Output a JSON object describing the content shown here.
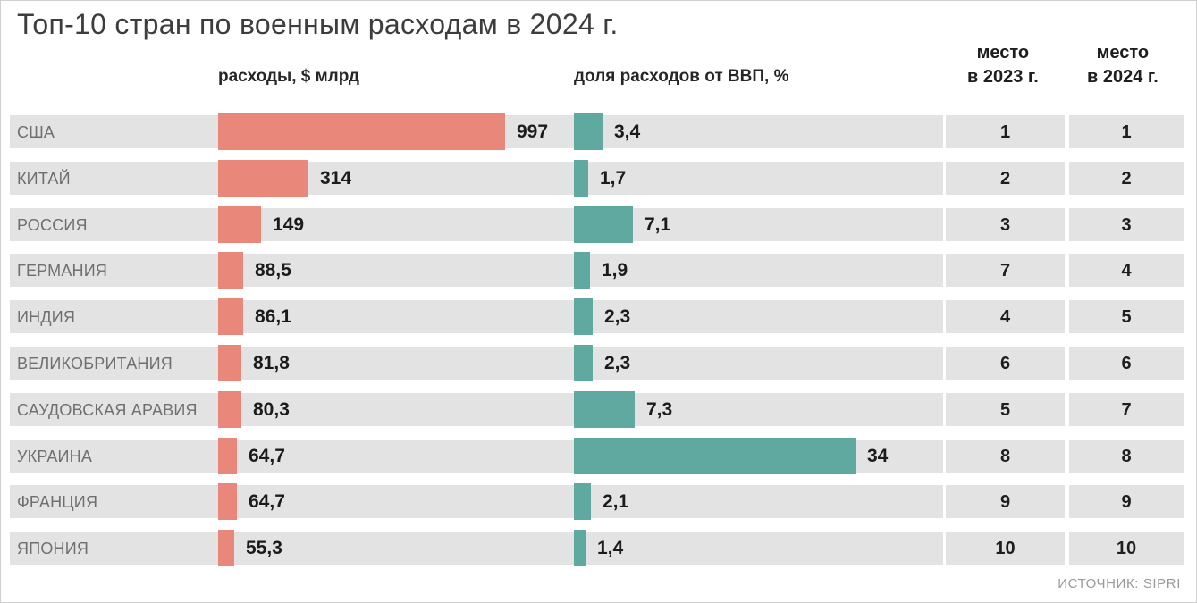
{
  "title": "Топ-10 стран по военным расходам в 2024 г.",
  "source": "ИСТОЧНИК: SIPRI",
  "colors": {
    "spending_bar": "#e9887a",
    "gdp_bar": "#5fa9a0",
    "row_bg": "#e3e3e3"
  },
  "headers": {
    "spending": "расходы, $ млрд",
    "gdp": "доля расходов от ВВП, %",
    "rank_2023_line1": "место",
    "rank_2023_line2": "в 2023 г.",
    "rank_2024_line1": "место",
    "rank_2024_line2": "в 2024 г."
  },
  "rows": [
    {
      "country": "США",
      "spending_label": "997",
      "gdp_label": "3,4",
      "rank_2023": "1",
      "rank_2024": "1"
    },
    {
      "country": "КИТАЙ",
      "spending_label": "314",
      "gdp_label": "1,7",
      "rank_2023": "2",
      "rank_2024": "2"
    },
    {
      "country": "РОССИЯ",
      "spending_label": "149",
      "gdp_label": "7,1",
      "rank_2023": "3",
      "rank_2024": "3"
    },
    {
      "country": "ГЕРМАНИЯ",
      "spending_label": "88,5",
      "gdp_label": "1,9",
      "rank_2023": "7",
      "rank_2024": "4"
    },
    {
      "country": "ИНДИЯ",
      "spending_label": "86,1",
      "gdp_label": "2,3",
      "rank_2023": "4",
      "rank_2024": "5"
    },
    {
      "country": "ВЕЛИКОБРИТАНИЯ",
      "spending_label": "81,8",
      "gdp_label": "2,3",
      "rank_2023": "6",
      "rank_2024": "6"
    },
    {
      "country": "САУДОВСКАЯ АРАВИЯ",
      "spending_label": "80,3",
      "gdp_label": "7,3",
      "rank_2023": "5",
      "rank_2024": "7"
    },
    {
      "country": "УКРАИНА",
      "spending_label": "64,7",
      "gdp_label": "34",
      "rank_2023": "8",
      "rank_2024": "8"
    },
    {
      "country": "ФРАНЦИЯ",
      "spending_label": "64,7",
      "gdp_label": "2,1",
      "rank_2023": "9",
      "rank_2024": "9"
    },
    {
      "country": "ЯПОНИЯ",
      "spending_label": "55,3",
      "gdp_label": "1,4",
      "rank_2023": "10",
      "rank_2024": "10"
    }
  ],
  "chart_data": {
    "type": "bar",
    "orientation": "horizontal",
    "title": "Топ-10 стран по военным расходам в 2024 г.",
    "categories": [
      "США",
      "КИТАЙ",
      "РОССИЯ",
      "ГЕРМАНИЯ",
      "ИНДИЯ",
      "ВЕЛИКОБРИТАНИЯ",
      "САУДОВСКАЯ АРАВИЯ",
      "УКРАИНА",
      "ФРАНЦИЯ",
      "ЯПОНИЯ"
    ],
    "series": [
      {
        "name": "расходы, $ млрд",
        "values": [
          997,
          314,
          149,
          88.5,
          86.1,
          81.8,
          80.3,
          64.7,
          64.7,
          55.3
        ]
      },
      {
        "name": "доля расходов от ВВП, %",
        "values": [
          3.4,
          1.7,
          7.1,
          1.9,
          2.3,
          2.3,
          7.3,
          34,
          2.1,
          1.4
        ]
      },
      {
        "name": "место в 2023 г.",
        "values": [
          1,
          2,
          3,
          7,
          4,
          6,
          5,
          8,
          9,
          10
        ]
      },
      {
        "name": "место в 2024 г.",
        "values": [
          1,
          2,
          3,
          4,
          5,
          6,
          7,
          8,
          9,
          10
        ]
      }
    ],
    "axis_max": {
      "spending": 997,
      "gdp_share": 34
    },
    "grid": false,
    "legend": false,
    "value_labels_shown": true,
    "source": "ИСТОЧНИК: SIPRI"
  }
}
